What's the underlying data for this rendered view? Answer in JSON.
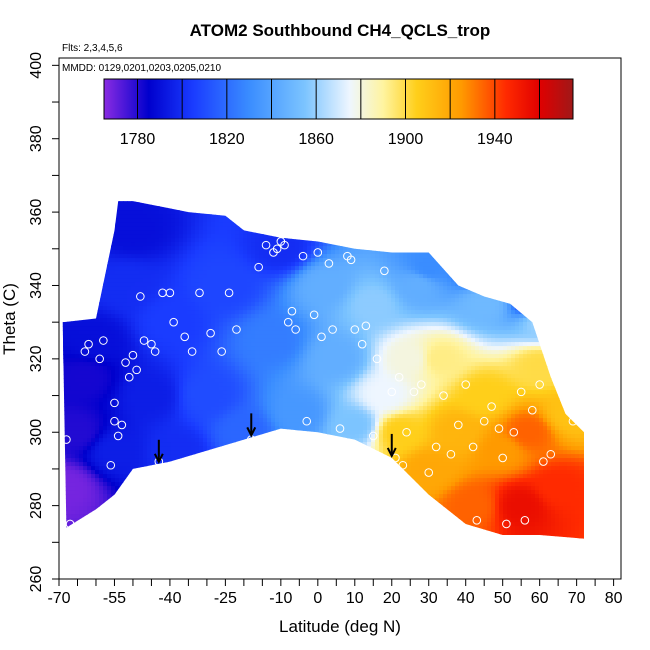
{
  "chart_data": {
    "type": "heatmap",
    "title": "ATOM2 Southbound CH4_QCLS_trop",
    "flights_note": "Flts: 2,3,4,5,6",
    "dates_note": "MMDD: 0129,0201,0203,0205,0210",
    "xlabel": "Latitude (deg N)",
    "ylabel": "Theta (C)",
    "xlim": [
      -70,
      82
    ],
    "ylim": [
      260,
      402
    ],
    "x_tick_labels": [
      "-70",
      "-55",
      "-40",
      "-25",
      "-10",
      "0",
      "10",
      "20",
      "30",
      "40",
      "50",
      "60",
      "70",
      "80"
    ],
    "x_tick_values": [
      -70,
      -55,
      -40,
      -25,
      -10,
      0,
      10,
      20,
      30,
      40,
      50,
      60,
      70,
      80
    ],
    "y_tick_labels": [
      "260",
      "280",
      "300",
      "320",
      "340",
      "360",
      "380",
      "400"
    ],
    "y_tick_values": [
      260,
      280,
      300,
      320,
      340,
      360,
      380,
      400
    ],
    "colorbar": {
      "min": 1765,
      "max": 1975,
      "tick_labels": [
        "1780",
        "1820",
        "1860",
        "1900",
        "1940"
      ],
      "tick_values": [
        1780,
        1820,
        1860,
        1900,
        1940
      ]
    },
    "colorbar_stops": [
      {
        "value": 1765,
        "color": "#8a2be2"
      },
      {
        "value": 1785,
        "color": "#0000cd"
      },
      {
        "value": 1805,
        "color": "#1a3cff"
      },
      {
        "value": 1830,
        "color": "#3a8dff"
      },
      {
        "value": 1855,
        "color": "#7cc4ff"
      },
      {
        "value": 1875,
        "color": "#eef6ff"
      },
      {
        "value": 1890,
        "color": "#fff4a0"
      },
      {
        "value": 1905,
        "color": "#ffcf1a"
      },
      {
        "value": 1925,
        "color": "#ff9a00"
      },
      {
        "value": 1945,
        "color": "#ff2a00"
      },
      {
        "value": 1960,
        "color": "#e00000"
      },
      {
        "value": 1975,
        "color": "#a01818"
      }
    ],
    "field_anchors": [
      {
        "lat": -68,
        "theta": 285,
        "ch4": 1768
      },
      {
        "lat": -65,
        "theta": 300,
        "ch4": 1780
      },
      {
        "lat": -63,
        "theta": 315,
        "ch4": 1782
      },
      {
        "lat": -60,
        "theta": 325,
        "ch4": 1790
      },
      {
        "lat": -55,
        "theta": 295,
        "ch4": 1795
      },
      {
        "lat": -52,
        "theta": 340,
        "ch4": 1800
      },
      {
        "lat": -50,
        "theta": 355,
        "ch4": 1790
      },
      {
        "lat": -45,
        "theta": 310,
        "ch4": 1795
      },
      {
        "lat": -40,
        "theta": 330,
        "ch4": 1805
      },
      {
        "lat": -38,
        "theta": 295,
        "ch4": 1800
      },
      {
        "lat": -30,
        "theta": 310,
        "ch4": 1810
      },
      {
        "lat": -25,
        "theta": 340,
        "ch4": 1808
      },
      {
        "lat": -20,
        "theta": 300,
        "ch4": 1818
      },
      {
        "lat": -12,
        "theta": 325,
        "ch4": 1825
      },
      {
        "lat": -10,
        "theta": 350,
        "ch4": 1800
      },
      {
        "lat": -5,
        "theta": 305,
        "ch4": 1835
      },
      {
        "lat": 2,
        "theta": 340,
        "ch4": 1845
      },
      {
        "lat": 5,
        "theta": 320,
        "ch4": 1845
      },
      {
        "lat": 10,
        "theta": 302,
        "ch4": 1855
      },
      {
        "lat": 15,
        "theta": 335,
        "ch4": 1858
      },
      {
        "lat": 18,
        "theta": 310,
        "ch4": 1875
      },
      {
        "lat": 22,
        "theta": 300,
        "ch4": 1905
      },
      {
        "lat": 25,
        "theta": 320,
        "ch4": 1880
      },
      {
        "lat": 27,
        "theta": 340,
        "ch4": 1845
      },
      {
        "lat": 30,
        "theta": 290,
        "ch4": 1920
      },
      {
        "lat": 33,
        "theta": 320,
        "ch4": 1893
      },
      {
        "lat": 38,
        "theta": 300,
        "ch4": 1915
      },
      {
        "lat": 42,
        "theta": 280,
        "ch4": 1935
      },
      {
        "lat": 45,
        "theta": 310,
        "ch4": 1905
      },
      {
        "lat": 50,
        "theta": 295,
        "ch4": 1925
      },
      {
        "lat": 55,
        "theta": 280,
        "ch4": 1955
      },
      {
        "lat": 57,
        "theta": 300,
        "ch4": 1935
      },
      {
        "lat": 60,
        "theta": 318,
        "ch4": 1900
      },
      {
        "lat": 65,
        "theta": 285,
        "ch4": 1945
      },
      {
        "lat": 68,
        "theta": 305,
        "ch4": 1910
      },
      {
        "lat": 45,
        "theta": 335,
        "ch4": 1850
      },
      {
        "lat": 60,
        "theta": 330,
        "ch4": 1860
      },
      {
        "lat": 45,
        "theta": 345,
        "ch4": 1800
      },
      {
        "lat": 60,
        "theta": 335,
        "ch4": 1790
      },
      {
        "lat": 30,
        "theta": 345,
        "ch4": 1830
      }
    ],
    "upper_boundary": [
      {
        "lat": -69,
        "theta": 330
      },
      {
        "lat": -60,
        "theta": 331
      },
      {
        "lat": -55,
        "theta": 355
      },
      {
        "lat": -54,
        "theta": 363
      },
      {
        "lat": -50,
        "theta": 363
      },
      {
        "lat": -45,
        "theta": 362
      },
      {
        "lat": -40,
        "theta": 361
      },
      {
        "lat": -35,
        "theta": 360
      },
      {
        "lat": -25,
        "theta": 359
      },
      {
        "lat": -20,
        "theta": 355
      },
      {
        "lat": -10,
        "theta": 353
      },
      {
        "lat": 0,
        "theta": 352
      },
      {
        "lat": 10,
        "theta": 350
      },
      {
        "lat": 20,
        "theta": 349
      },
      {
        "lat": 30,
        "theta": 349
      },
      {
        "lat": 38,
        "theta": 340
      },
      {
        "lat": 45,
        "theta": 337
      },
      {
        "lat": 52,
        "theta": 335
      },
      {
        "lat": 58,
        "theta": 330
      },
      {
        "lat": 63,
        "theta": 315
      },
      {
        "lat": 67,
        "theta": 305
      },
      {
        "lat": 72,
        "theta": 300
      }
    ],
    "lower_boundary": [
      {
        "lat": 72,
        "theta": 271
      },
      {
        "lat": 60,
        "theta": 272
      },
      {
        "lat": 50,
        "theta": 272
      },
      {
        "lat": 40,
        "theta": 275
      },
      {
        "lat": 30,
        "theta": 283
      },
      {
        "lat": 20,
        "theta": 293
      },
      {
        "lat": 10,
        "theta": 298
      },
      {
        "lat": 0,
        "theta": 300
      },
      {
        "lat": -10,
        "theta": 301
      },
      {
        "lat": -20,
        "theta": 298
      },
      {
        "lat": -30,
        "theta": 295
      },
      {
        "lat": -40,
        "theta": 292
      },
      {
        "lat": -50,
        "theta": 290
      },
      {
        "lat": -55,
        "theta": 283
      },
      {
        "lat": -60,
        "theta": 279
      },
      {
        "lat": -68,
        "theta": 274
      }
    ],
    "arrow_latitudes": [
      -43,
      -18,
      20
    ],
    "observation_points": [
      {
        "lat": -68,
        "theta": 298
      },
      {
        "lat": -67,
        "theta": 275
      },
      {
        "lat": -63,
        "theta": 322
      },
      {
        "lat": -62,
        "theta": 324
      },
      {
        "lat": -59,
        "theta": 320
      },
      {
        "lat": -58,
        "theta": 325
      },
      {
        "lat": -56,
        "theta": 291
      },
      {
        "lat": -55,
        "theta": 303
      },
      {
        "lat": -55,
        "theta": 308
      },
      {
        "lat": -54,
        "theta": 299
      },
      {
        "lat": -53,
        "theta": 302
      },
      {
        "lat": -52,
        "theta": 319
      },
      {
        "lat": -51,
        "theta": 315
      },
      {
        "lat": -50,
        "theta": 321
      },
      {
        "lat": -49,
        "theta": 317
      },
      {
        "lat": -48,
        "theta": 337
      },
      {
        "lat": -47,
        "theta": 325
      },
      {
        "lat": -45,
        "theta": 324
      },
      {
        "lat": -44,
        "theta": 322
      },
      {
        "lat": -43,
        "theta": 292
      },
      {
        "lat": -42,
        "theta": 338
      },
      {
        "lat": -40,
        "theta": 338
      },
      {
        "lat": -39,
        "theta": 330
      },
      {
        "lat": -36,
        "theta": 326
      },
      {
        "lat": -34,
        "theta": 322
      },
      {
        "lat": -32,
        "theta": 338
      },
      {
        "lat": -29,
        "theta": 327
      },
      {
        "lat": -26,
        "theta": 322
      },
      {
        "lat": -24,
        "theta": 338
      },
      {
        "lat": -22,
        "theta": 328
      },
      {
        "lat": -18,
        "theta": 298
      },
      {
        "lat": -16,
        "theta": 345
      },
      {
        "lat": -14,
        "theta": 351
      },
      {
        "lat": -12,
        "theta": 349
      },
      {
        "lat": -11,
        "theta": 350
      },
      {
        "lat": -10,
        "theta": 352
      },
      {
        "lat": -9,
        "theta": 351
      },
      {
        "lat": -8,
        "theta": 330
      },
      {
        "lat": -7,
        "theta": 333
      },
      {
        "lat": -6,
        "theta": 328
      },
      {
        "lat": -4,
        "theta": 348
      },
      {
        "lat": -3,
        "theta": 303
      },
      {
        "lat": -1,
        "theta": 332
      },
      {
        "lat": 0,
        "theta": 349
      },
      {
        "lat": 1,
        "theta": 326
      },
      {
        "lat": 3,
        "theta": 346
      },
      {
        "lat": 4,
        "theta": 328
      },
      {
        "lat": 6,
        "theta": 301
      },
      {
        "lat": 8,
        "theta": 348
      },
      {
        "lat": 9,
        "theta": 347
      },
      {
        "lat": 10,
        "theta": 328
      },
      {
        "lat": 12,
        "theta": 324
      },
      {
        "lat": 13,
        "theta": 329
      },
      {
        "lat": 15,
        "theta": 299
      },
      {
        "lat": 16,
        "theta": 320
      },
      {
        "lat": 18,
        "theta": 344
      },
      {
        "lat": 20,
        "theta": 311
      },
      {
        "lat": 21,
        "theta": 293
      },
      {
        "lat": 22,
        "theta": 315
      },
      {
        "lat": 23,
        "theta": 291
      },
      {
        "lat": 24,
        "theta": 300
      },
      {
        "lat": 26,
        "theta": 311
      },
      {
        "lat": 28,
        "theta": 313
      },
      {
        "lat": 30,
        "theta": 289
      },
      {
        "lat": 32,
        "theta": 296
      },
      {
        "lat": 34,
        "theta": 310
      },
      {
        "lat": 36,
        "theta": 294
      },
      {
        "lat": 38,
        "theta": 302
      },
      {
        "lat": 40,
        "theta": 313
      },
      {
        "lat": 42,
        "theta": 296
      },
      {
        "lat": 43,
        "theta": 276
      },
      {
        "lat": 45,
        "theta": 303
      },
      {
        "lat": 47,
        "theta": 307
      },
      {
        "lat": 49,
        "theta": 301
      },
      {
        "lat": 50,
        "theta": 293
      },
      {
        "lat": 51,
        "theta": 275
      },
      {
        "lat": 53,
        "theta": 300
      },
      {
        "lat": 55,
        "theta": 311
      },
      {
        "lat": 56,
        "theta": 276
      },
      {
        "lat": 58,
        "theta": 306
      },
      {
        "lat": 60,
        "theta": 313
      },
      {
        "lat": 61,
        "theta": 292
      },
      {
        "lat": 63,
        "theta": 294
      },
      {
        "lat": 65,
        "theta": 317
      },
      {
        "lat": 67,
        "theta": 314
      },
      {
        "lat": 69,
        "theta": 303
      }
    ],
    "colors": {
      "frame": "#000000",
      "point_stroke": "#ffffff",
      "arrow": "#000000"
    }
  }
}
